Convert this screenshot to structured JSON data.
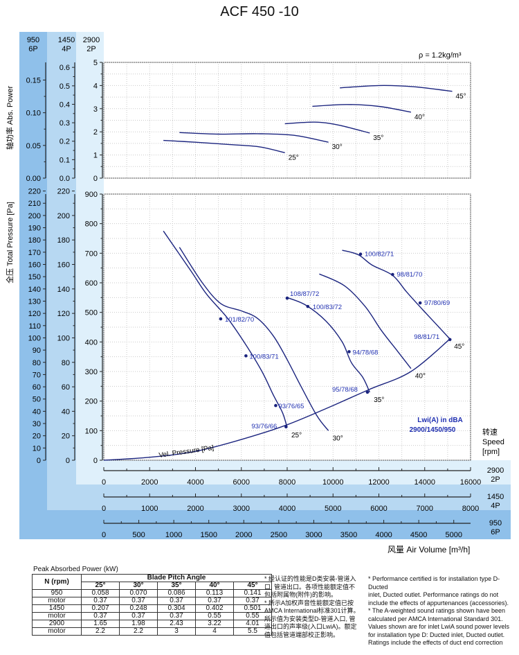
{
  "title": "ACF 450 -10",
  "density_label": "ρ = 1.2kg/m³",
  "left_axis_headers": [
    {
      "rpm": "950",
      "poles": "6P"
    },
    {
      "rpm": "1450",
      "poles": "4P"
    },
    {
      "rpm": "2900",
      "poles": "2P"
    }
  ],
  "power_axis_label": "轴功率 Abs. Power",
  "pressure_axis_label": "全压 Total Pressure [Pa]",
  "power_ticks": {
    "950": [
      "0.00",
      "0.05",
      "0.10",
      "0.15"
    ],
    "1450": [
      "0.0",
      "0.1",
      "0.2",
      "0.3",
      "0.4",
      "0.5",
      "0.6"
    ],
    "2900": [
      "0",
      "1",
      "2",
      "3",
      "4",
      "5"
    ]
  },
  "pressure_ticks": {
    "950": [
      "0",
      "10",
      "20",
      "30",
      "40",
      "50",
      "60",
      "70",
      "80",
      "90",
      "100",
      "110",
      "120",
      "130",
      "140",
      "150",
      "160",
      "170",
      "180",
      "190",
      "200",
      "210",
      "220"
    ],
    "1450": [
      "0",
      "20",
      "40",
      "60",
      "80",
      "100",
      "120",
      "140",
      "160",
      "180",
      "200",
      "220"
    ],
    "2900": [
      "0",
      "100",
      "200",
      "300",
      "400",
      "500",
      "600",
      "700",
      "800",
      "900"
    ]
  },
  "airflow_axes": [
    {
      "speed": "2900",
      "poles": "2P",
      "ticks": [
        "0",
        "2000",
        "4000",
        "6000",
        "8000",
        "10000",
        "12000",
        "14000",
        "16000"
      ]
    },
    {
      "speed": "1450",
      "poles": "4P",
      "ticks": [
        "0",
        "1000",
        "2000",
        "3000",
        "4000",
        "5000",
        "6000",
        "7000",
        "8000"
      ]
    },
    {
      "speed": "950",
      "poles": "6P",
      "ticks": [
        "0",
        "500",
        "1000",
        "1500",
        "2000",
        "2500",
        "3000",
        "3500",
        "4000",
        "4500",
        "5000"
      ]
    }
  ],
  "speed_label": [
    "转速",
    "Speed",
    "[rpm]"
  ],
  "x_axis_label": "风量 Air Volume [m³/h]",
  "lwi_label": "Lwi(A) in dBA",
  "lwi_speeds": "2900/1450/950",
  "vel_pressure_label": "Vel. Pressure [Pa]",
  "chart_data": {
    "type": "line",
    "speed_rpm": 2900,
    "x_unit": "m³/h",
    "xlim": [
      0,
      16000
    ],
    "pressure_ylim": [
      0,
      900
    ],
    "power_ylim": [
      0,
      5
    ],
    "pressure_curves": [
      {
        "name": "25°",
        "x": [
          2600,
          3800,
          4500,
          5400,
          6200,
          6900,
          7400,
          7800,
          8000
        ],
        "y": [
          775,
          640,
          560,
          480,
          390,
          300,
          220,
          160,
          110
        ]
      },
      {
        "name": "30°",
        "x": [
          3300,
          4300,
          5100,
          6000,
          6700,
          7400,
          8000,
          8600,
          9300,
          9800
        ],
        "y": [
          720,
          600,
          530,
          505,
          480,
          420,
          340,
          250,
          150,
          100
        ]
      },
      {
        "name": "35°",
        "x": [
          8000,
          8800,
          9700,
          10400,
          10800,
          11300,
          11600
        ],
        "y": [
          550,
          525,
          470,
          400,
          330,
          280,
          230
        ]
      },
      {
        "name": "40°",
        "x": [
          9400,
          10500,
          11400,
          12100,
          12800,
          13400
        ],
        "y": [
          630,
          590,
          520,
          440,
          370,
          310
        ]
      },
      {
        "name": "45°",
        "x": [
          10400,
          11100,
          11700,
          12600,
          13200,
          13900,
          14500,
          15100
        ],
        "y": [
          710,
          695,
          660,
          625,
          570,
          510,
          460,
          410
        ]
      }
    ],
    "velocity_pressure": {
      "x": [
        0,
        2000,
        4000,
        6000,
        8000,
        10000,
        11600,
        13400,
        15100
      ],
      "y": [
        0,
        10,
        30,
        70,
        120,
        185,
        240,
        300,
        410
      ]
    },
    "power_curves": [
      {
        "name": "25°",
        "x": [
          2600,
          4000,
          5500,
          6800,
          7900
        ],
        "y": [
          1.63,
          1.55,
          1.45,
          1.35,
          1.1
        ]
      },
      {
        "name": "30°",
        "x": [
          3300,
          5000,
          6700,
          8300,
          9800
        ],
        "y": [
          1.97,
          1.9,
          1.92,
          1.85,
          1.55
        ]
      },
      {
        "name": "35°",
        "x": [
          7900,
          9200,
          10200,
          11600
        ],
        "y": [
          2.35,
          2.42,
          2.3,
          1.95
        ]
      },
      {
        "name": "40°",
        "x": [
          9100,
          10600,
          12000,
          13400
        ],
        "y": [
          3.1,
          3.18,
          3.1,
          2.85
        ]
      },
      {
        "name": "45°",
        "x": [
          10300,
          12000,
          13500,
          15200
        ],
        "y": [
          3.9,
          4.0,
          3.95,
          3.75
        ]
      }
    ],
    "noise_points": [
      {
        "label": "93/76/66",
        "x": 7950,
        "y": 113
      },
      {
        "label": "93/76/65",
        "x": 7500,
        "y": 185
      },
      {
        "label": "100/83/71",
        "x": 6200,
        "y": 353
      },
      {
        "label": "101/82/70",
        "x": 5100,
        "y": 478
      },
      {
        "label": "108/87/72",
        "x": 8000,
        "y": 548
      },
      {
        "label": "100/83/72",
        "x": 8900,
        "y": 520
      },
      {
        "label": "94/78/68",
        "x": 10700,
        "y": 367
      },
      {
        "label": "95/78/68",
        "x": 11500,
        "y": 230
      },
      {
        "label": "100/82/71",
        "x": 11200,
        "y": 697
      },
      {
        "label": "98/81/70",
        "x": 12600,
        "y": 628
      },
      {
        "label": "97/80/69",
        "x": 13800,
        "y": 532
      },
      {
        "label": "98/81/71",
        "x": 15100,
        "y": 408
      }
    ]
  },
  "power_table": {
    "title": "Peak Absorbed Power (kW)",
    "col_n": "N (rpm)",
    "col_group": "Blade Pitch Angle",
    "angles": [
      "25°",
      "30°",
      "35°",
      "40°",
      "45°"
    ],
    "rows": [
      {
        "label": "950",
        "values": [
          "0.058",
          "0.070",
          "0.086",
          "0.113",
          "0.141"
        ]
      },
      {
        "label": "motor",
        "values": [
          "0.37",
          "0.37",
          "0.37",
          "0.37",
          "0.37"
        ]
      },
      {
        "label": "1450",
        "values": [
          "0.207",
          "0.248",
          "0.304",
          "0.402",
          "0.501"
        ]
      },
      {
        "label": "motor",
        "values": [
          "0.37",
          "0.37",
          "0.37",
          "0.55",
          "0.55"
        ]
      },
      {
        "label": "2900",
        "values": [
          "1.65",
          "1.98",
          "2.43",
          "3.22",
          "4.01"
        ]
      },
      {
        "label": "motor",
        "values": [
          "2.2",
          "2.2",
          "3",
          "4",
          "5.5"
        ]
      }
    ]
  },
  "notes_cn": [
    "* 经认证的性能是D类安装-管道入",
    "口, 管道出口。各项性能额定值不",
    "包括附属物(附件)的影响。",
    "* 所示A加权声音性能额定值已按",
    "AMCA International标准301计算。",
    "所示值为安装类型D-管道入口, 管",
    "道出口的声率级(入口LwiA)。额定",
    "值包括管道端部校正影响。"
  ],
  "notes_en": [
    "* Performance certified is for installation type D-Ducted",
    "inlet, Ducted outlet. Performance ratings do not",
    "include the effects of appurtenances (accessories).",
    "* The A-weighted sound ratings shown have been",
    "calculated per AMCA International Standard 301.",
    "Values shown are for inlet LwiA sound power levels",
    "for installation type D: Ducted inlet, Ducted outlet.",
    "Ratings include the effects of duct end correction"
  ]
}
